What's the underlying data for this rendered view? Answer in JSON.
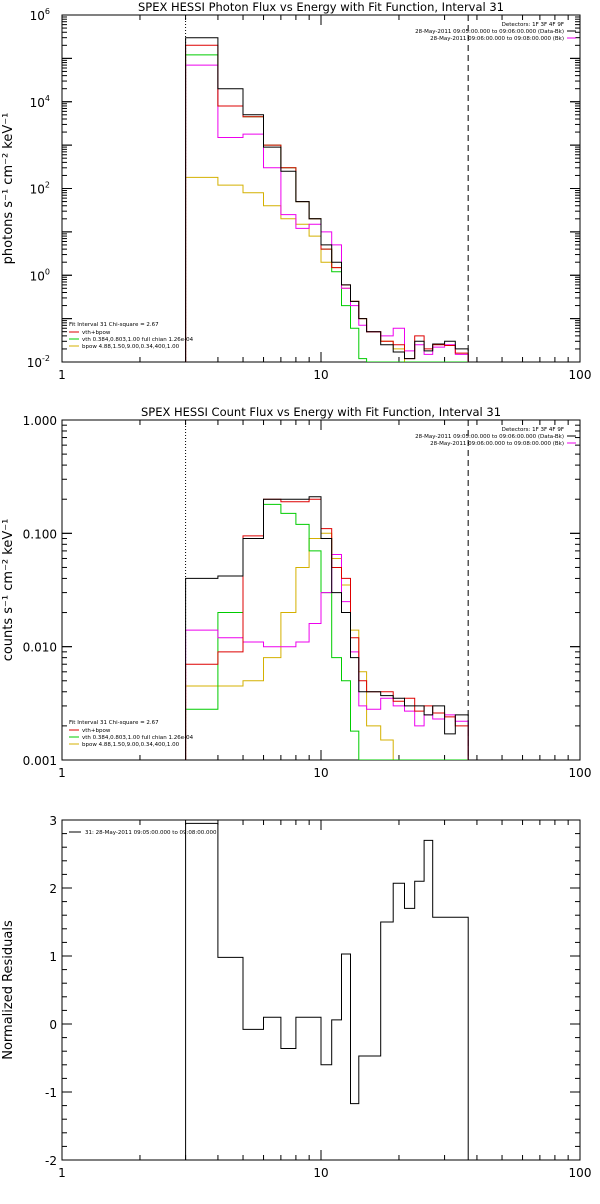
{
  "colors": {
    "data": "#000000",
    "total_fit": "#dd0000",
    "vth": "#00cc00",
    "bpow": "#d4b000",
    "background": "#ee00ee",
    "vline_dashed": "#000000",
    "vline_dotted_left": "#000000"
  },
  "chart_data": [
    {
      "type": "line",
      "step": true,
      "title": "SPEX HESSI Photon Flux vs Energy with Fit Function, Interval 31",
      "ylabel": "photons s⁻¹ cm⁻² keV⁻¹",
      "xlabel": "",
      "xscale": "log",
      "yscale": "log",
      "xlim": [
        1,
        100
      ],
      "ylim": [
        0.01,
        1000000
      ],
      "xticks": [
        "1",
        "10",
        "100"
      ],
      "yticks": [
        {
          "v": 1000000,
          "base": "10",
          "exp": "6"
        },
        {
          "v": 10000,
          "base": "10",
          "exp": "4"
        },
        {
          "v": 100,
          "base": "10",
          "exp": "2"
        },
        {
          "v": 1,
          "base": "10",
          "exp": "0"
        },
        {
          "v": 0.01,
          "base": "10",
          "exp": "-2"
        }
      ],
      "legend_top_right": [
        {
          "text": "Detectors: 1F 3F 4F 9F",
          "color": ""
        },
        {
          "text": "28-May-2011 09:05:00.000 to 09:06:00.000 (Data-Bk)",
          "color": "#000000"
        },
        {
          "text": "28-May-2011 09:06:00.000 to 09:08:00.000 (Bk)",
          "color": "#ee00ee"
        }
      ],
      "legend_bottom_left": {
        "header": "Fit Interval 31   Chi-square = 2.67",
        "entries": [
          {
            "text": "vth+bpow",
            "color": "#dd0000"
          },
          {
            "text": "vth 0.384,0.803,1.00  full chian 1.26e-04",
            "color": "#00cc00"
          },
          {
            "text": "bpow 4.88,1.50,9.00,0.34,400,1.00",
            "color": "#d4b000"
          }
        ]
      },
      "vline_dashed": 37,
      "vline_dotted": 3,
      "edges": [
        3,
        4,
        5,
        6,
        7,
        8,
        9,
        10,
        11,
        12,
        13,
        14,
        15,
        17,
        19,
        21,
        23,
        25,
        27,
        30,
        33,
        37
      ],
      "series": [
        {
          "key": "data",
          "values": [
            300000,
            20000,
            5000,
            900,
            250,
            50,
            20,
            5,
            2,
            0.6,
            0.25,
            0.1,
            0.05,
            0.025,
            0.017,
            0.012,
            0.03,
            0.018,
            0.026,
            0.03,
            0.02
          ]
        },
        {
          "key": "total_fit",
          "values": [
            200000,
            8000,
            4500,
            1000,
            300,
            50,
            20,
            4,
            1.5,
            0.6,
            0.25,
            0.1,
            0.05,
            0.03,
            0.025,
            0.012,
            0.04,
            0.02,
            0.025,
            0.024,
            0.016
          ]
        },
        {
          "key": "vth",
          "values": [
            120000,
            8000,
            4500,
            1000,
            300,
            50,
            20,
            4,
            1.2,
            0.2,
            0.06,
            0.012,
            0.01,
            0.01,
            0.01,
            0.01,
            0.01,
            0.01,
            0.01,
            0.01,
            0.01
          ]
        },
        {
          "key": "bpow",
          "values": [
            180,
            120,
            80,
            40,
            20,
            15,
            8,
            2,
            1.5,
            0.5,
            0.25,
            0.1,
            0.05,
            0.03,
            0.02,
            0.01,
            0.01,
            0.01,
            0.01,
            0.01,
            0.01
          ]
        },
        {
          "key": "background",
          "values": [
            70000,
            1500,
            1800,
            300,
            25,
            12,
            15,
            10,
            5,
            0.5,
            0.2,
            0.07,
            0.05,
            0.04,
            0.06,
            0.018,
            0.025,
            0.015,
            0.022,
            0.025,
            0.015
          ]
        }
      ]
    },
    {
      "type": "line",
      "step": true,
      "title": "SPEX HESSI Count Flux vs Energy with Fit Function, Interval 31",
      "ylabel": "counts s⁻¹ cm⁻² keV⁻¹",
      "xlabel": "",
      "xscale": "log",
      "yscale": "log",
      "xlim": [
        1,
        100
      ],
      "ylim": [
        0.001,
        1
      ],
      "xticks": [
        "1",
        "10",
        "100"
      ],
      "yticks": [
        {
          "v": 1,
          "label": "1.000"
        },
        {
          "v": 0.1,
          "label": "0.100"
        },
        {
          "v": 0.01,
          "label": "0.010"
        },
        {
          "v": 0.001,
          "label": "0.001"
        }
      ],
      "legend_top_right": [
        {
          "text": "Detectors: 1F 3F 4F 9F",
          "color": ""
        },
        {
          "text": "28-May-2011 09:05:00.000 to 09:06:00.000 (Data-Bk)",
          "color": "#000000"
        },
        {
          "text": "28-May-2011 09:06:00.000 to 09:08:00.000 (Bk)",
          "color": "#ee00ee"
        }
      ],
      "legend_bottom_left": {
        "header": "Fit Interval 31   Chi-square = 2.67",
        "entries": [
          {
            "text": "vth+bpow",
            "color": "#dd0000"
          },
          {
            "text": "vth 0.384,0.803,1.00  full chian 1.26e-04",
            "color": "#00cc00"
          },
          {
            "text": "bpow 4.88,1.50,9.00,0.34,400,1.00",
            "color": "#d4b000"
          }
        ]
      },
      "vline_dashed": 37,
      "vline_dotted": 3,
      "edges": [
        3,
        4,
        5,
        6,
        7,
        8,
        9,
        10,
        11,
        12,
        13,
        14,
        15,
        17,
        19,
        21,
        23,
        25,
        27,
        30,
        33,
        37
      ],
      "series": [
        {
          "key": "data",
          "values": [
            0.04,
            0.042,
            0.09,
            0.2,
            0.2,
            0.2,
            0.21,
            0.09,
            0.03,
            0.02,
            0.008,
            0.004,
            0.004,
            0.0037,
            0.0035,
            0.003,
            0.003,
            0.0025,
            0.003,
            0.0017,
            0.0025
          ]
        },
        {
          "key": "total_fit",
          "values": [
            0.007,
            0.009,
            0.095,
            0.2,
            0.19,
            0.19,
            0.2,
            0.11,
            0.05,
            0.04,
            0.012,
            0.005,
            0.004,
            0.004,
            0.0033,
            0.0035,
            0.0027,
            0.003,
            0.0026,
            0.0024,
            0.002
          ]
        },
        {
          "key": "vth",
          "values": [
            0.0028,
            0.02,
            0.09,
            0.18,
            0.15,
            0.12,
            0.07,
            0.03,
            0.008,
            0.005,
            0.0018,
            0.001,
            0.001,
            0.001,
            0.001,
            0.001,
            0.001,
            0.001,
            0.001,
            0.001,
            0.001
          ]
        },
        {
          "key": "bpow",
          "values": [
            0.0045,
            0.0045,
            0.005,
            0.008,
            0.02,
            0.05,
            0.09,
            0.1,
            0.06,
            0.035,
            0.014,
            0.006,
            0.002,
            0.0015,
            0.001,
            0.001,
            0.001,
            0.001,
            0.001,
            0.001,
            0.001
          ]
        },
        {
          "key": "background",
          "values": [
            0.014,
            0.012,
            0.011,
            0.01,
            0.01,
            0.011,
            0.016,
            0.03,
            0.065,
            0.025,
            0.009,
            0.003,
            0.0028,
            0.0035,
            0.003,
            0.0027,
            0.002,
            0.0025,
            0.0023,
            0.0025,
            0.0022
          ]
        }
      ]
    },
    {
      "type": "line",
      "step": true,
      "title": "",
      "ylabel": "Normalized Residuals",
      "xlabel": "",
      "xscale": "log",
      "yscale": "linear",
      "xlim": [
        1,
        100
      ],
      "ylim": [
        -2,
        3
      ],
      "xticks": [
        "1",
        "10",
        "100"
      ],
      "yticks": [
        {
          "v": 3,
          "label": "3"
        },
        {
          "v": 2,
          "label": "2"
        },
        {
          "v": 1,
          "label": "1"
        },
        {
          "v": 0,
          "label": "0"
        },
        {
          "v": -1,
          "label": "-1"
        },
        {
          "v": -2,
          "label": "-2"
        }
      ],
      "legend_top_left": "31: 28-May-2011 09:05:00.000 to 09:08:00.000",
      "edges": [
        3,
        4,
        5,
        6,
        7,
        8,
        9,
        10,
        11,
        12,
        13,
        14,
        15,
        17,
        19,
        21,
        23,
        25,
        27,
        30,
        33,
        37
      ],
      "series": [
        {
          "key": "data",
          "values": [
            2.95,
            0.98,
            -0.08,
            0.1,
            -0.36,
            0.1,
            0.1,
            -0.6,
            0.06,
            1.03,
            -1.17,
            -0.47,
            -0.47,
            1.5,
            2.07,
            1.7,
            2.1,
            2.7,
            1.57,
            1.57,
            1.57
          ]
        }
      ]
    }
  ]
}
